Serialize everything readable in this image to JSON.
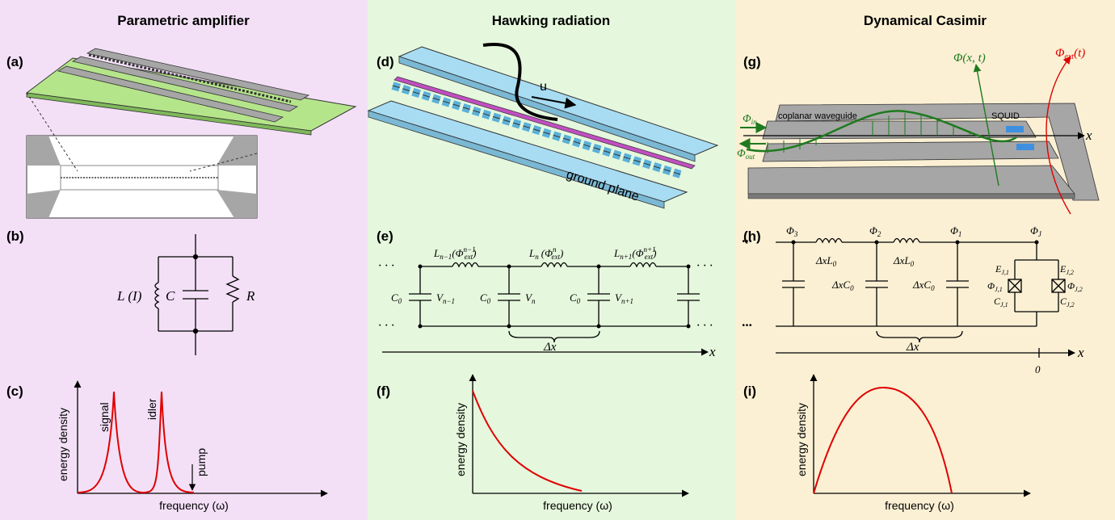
{
  "columns": [
    {
      "title": "Parametric amplifier",
      "bg": "#f3e0f7"
    },
    {
      "title": "Hawking radiation",
      "bg": "#e5f7dd"
    },
    {
      "title": "Dynamical Casimir",
      "bg": "#fbf0d4"
    }
  ],
  "labels": {
    "a": "(a)",
    "b": "(b)",
    "c": "(c)",
    "d": "(d)",
    "e": "(e)",
    "f": "(f)",
    "g": "(g)",
    "h": "(h)",
    "i": "(i)"
  },
  "panel_b": {
    "inductor": "L (I)",
    "cap": "C",
    "res": "R"
  },
  "panel_c": {
    "ylabel": "energy density",
    "xlabel": "frequency (ω)",
    "signal": "signal",
    "idler": "idler",
    "pump": "pump"
  },
  "panel_d": {
    "u": "u",
    "ground": "ground plane"
  },
  "panel_e": {
    "L_left": "L",
    "L_left_sub": "n−1",
    "L_left_arg": "(Φ",
    "L_left_arg_sub": "ext",
    "L_left_arg_sup": "n−1",
    "close": ")",
    "L_mid": "L",
    "L_mid_sub": "n",
    "L_mid_arg": "(Φ",
    "L_mid_arg_sub": "ext",
    "L_mid_arg_sup": "n",
    "L_right": "L",
    "L_right_sub": "n+1",
    "L_right_arg": "(Φ",
    "L_right_arg_sub": "ext",
    "L_right_arg_sup": "n+1",
    "C0": "C",
    "C0_sub": "0",
    "V_left": "V",
    "V_left_sub": "n−1",
    "V_mid": "V",
    "V_mid_sub": "n",
    "V_right": "V",
    "V_right_sub": "n+1",
    "dx": "Δx",
    "x": "x",
    "dots": "· · ·"
  },
  "panel_f": {
    "ylabel": "energy density",
    "xlabel": "frequency (ω)"
  },
  "panel_g": {
    "phi_xt": "Φ(x, t)",
    "phi_ext": "Φ",
    "phi_ext_sub": "ext",
    "phi_ext_arg": "(t)",
    "phi_in": "Φ",
    "phi_in_sub": "in",
    "phi_out": "Φ",
    "phi_out_sub": "out",
    "cpw": "coplanar waveguide",
    "squid": "SQUID",
    "x": "x"
  },
  "panel_h": {
    "phi3": "Φ",
    "phi3_sub": "3",
    "phi2": "Φ",
    "phi2_sub": "2",
    "phi1": "Φ",
    "phi1_sub": "1",
    "phiJ": "Φ",
    "phiJ_sub": "J",
    "dxL0": "ΔxL",
    "dxL0_sub": "0",
    "dxC0": "ΔxC",
    "dxC0_sub": "0",
    "EJ1": "E",
    "EJ1_sub": "J,1",
    "EJ2": "E",
    "EJ2_sub": "J,2",
    "PJ1": "Φ",
    "PJ1_sub": "J,1",
    "PJ2": "Φ",
    "PJ2_sub": "J,2",
    "CJ1": "C",
    "CJ1_sub": "J,1",
    "CJ2": "C",
    "CJ2_sub": "J,2",
    "dx": "Δx",
    "x": "x",
    "zero": "0",
    "dots": "···"
  },
  "panel_i": {
    "ylabel": "energy density",
    "xlabel": "frequency (ω)"
  },
  "colors": {
    "red": "#e00000",
    "green": "#1e7a1e",
    "cyan": "#a8dcf2",
    "magenta": "#c04fc0",
    "lime": "#b5e58a",
    "grey": "#a6a6a6"
  }
}
